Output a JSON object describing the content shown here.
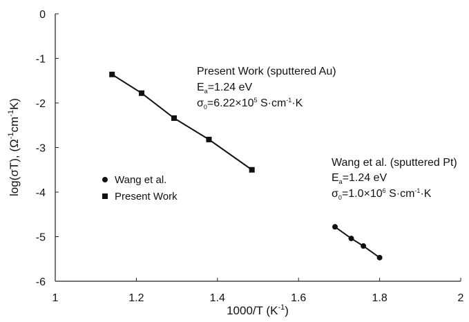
{
  "chart_data": {
    "type": "scatter",
    "x_label": [
      "1000/T (K",
      "-1",
      ")"
    ],
    "y_label": [
      "log(σT), (Ω",
      "-1",
      "cm",
      "-1",
      "K)"
    ],
    "xlim": [
      1,
      2
    ],
    "ylim": [
      -6,
      0
    ],
    "xticks": [
      1,
      1.2,
      1.4,
      1.6,
      1.8,
      2
    ],
    "yticks": [
      -6,
      -5,
      -4,
      -3,
      -2,
      -1,
      0
    ],
    "series": [
      {
        "name": "Wang et al.",
        "color": "#111111",
        "marker": "circle",
        "x": [
          1.69,
          1.73,
          1.76,
          1.8
        ],
        "values": [
          -4.78,
          -5.04,
          -5.21,
          -5.47
        ]
      },
      {
        "name": "Present Work",
        "color": "#111111",
        "marker": "square",
        "x": [
          1.14,
          1.213,
          1.293,
          1.379,
          1.485
        ],
        "values": [
          -1.36,
          -1.78,
          -2.34,
          -2.82,
          -3.5
        ]
      }
    ],
    "annotations": [
      {
        "title": "Present Work (sputtered Au)",
        "energy": [
          "E",
          "a",
          "=1.24 eV"
        ],
        "prefactor": [
          "σ",
          "0",
          "=6.22×10",
          "5",
          " S·cm",
          "-1",
          "·K"
        ]
      },
      {
        "title": "Wang et al. (sputtered Pt)",
        "energy": [
          "E",
          "a",
          "=1.24 eV"
        ],
        "prefactor": [
          "σ",
          "0",
          "=1.0×10",
          "6",
          " S·cm",
          "-1",
          "·K"
        ]
      }
    ]
  }
}
